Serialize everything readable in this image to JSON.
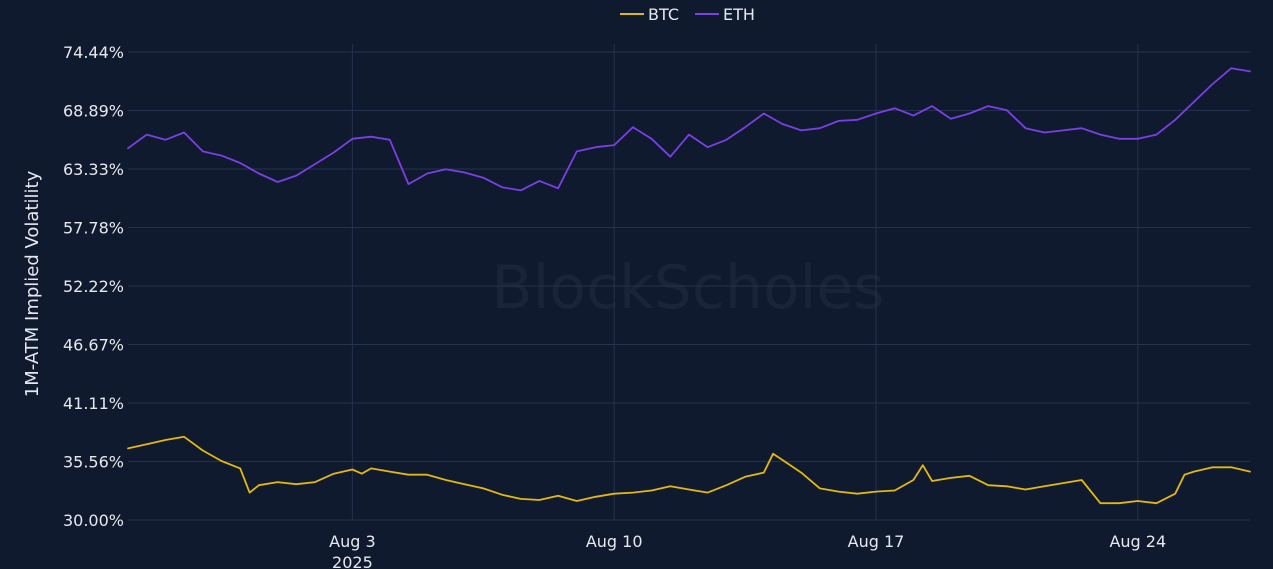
{
  "chart_data": {
    "type": "line",
    "title": "",
    "ylabel": "1M-ATM Implied Volatility",
    "xlabel": "",
    "ylim": [
      30.0,
      74.44
    ],
    "yticks": [
      "30.00%",
      "35.56%",
      "41.11%",
      "46.67%",
      "52.22%",
      "57.78%",
      "63.33%",
      "68.89%",
      "74.44%"
    ],
    "ytick_values": [
      30.0,
      35.56,
      41.11,
      46.67,
      52.22,
      57.78,
      63.33,
      68.89,
      74.44
    ],
    "xlim": [
      "2025-07-28",
      "2025-08-27"
    ],
    "xticks": [
      {
        "date": "2025-08-03",
        "label": "Aug 3",
        "sublabel": "2025"
      },
      {
        "date": "2025-08-10",
        "label": "Aug 10",
        "sublabel": ""
      },
      {
        "date": "2025-08-17",
        "label": "Aug 17",
        "sublabel": ""
      },
      {
        "date": "2025-08-24",
        "label": "Aug 24",
        "sublabel": ""
      }
    ],
    "grid": true,
    "legend_position": "top-center",
    "watermark": "BlockScholes",
    "colors": {
      "BTC": "#e3b80f",
      "ETH": "#7b3fe4",
      "background": "#0f1a2e",
      "grid": "#25324d"
    },
    "series": [
      {
        "name": "BTC",
        "points": [
          [
            "2025-07-28T00",
            36.8
          ],
          [
            "2025-07-28T12",
            37.2
          ],
          [
            "2025-07-29T00",
            37.6
          ],
          [
            "2025-07-29T12",
            37.9
          ],
          [
            "2025-07-30T00",
            36.6
          ],
          [
            "2025-07-30T12",
            35.6
          ],
          [
            "2025-07-31T00",
            34.9
          ],
          [
            "2025-07-31T06",
            32.6
          ],
          [
            "2025-07-31T12",
            33.3
          ],
          [
            "2025-08-01T00",
            33.6
          ],
          [
            "2025-08-01T12",
            33.4
          ],
          [
            "2025-08-02T00",
            33.6
          ],
          [
            "2025-08-02T12",
            34.4
          ],
          [
            "2025-08-03T00",
            34.8
          ],
          [
            "2025-08-03T06",
            34.4
          ],
          [
            "2025-08-03T12",
            34.9
          ],
          [
            "2025-08-04T00",
            34.6
          ],
          [
            "2025-08-04T12",
            34.3
          ],
          [
            "2025-08-05T00",
            34.3
          ],
          [
            "2025-08-05T12",
            33.8
          ],
          [
            "2025-08-06T00",
            33.4
          ],
          [
            "2025-08-06T12",
            33.0
          ],
          [
            "2025-08-07T00",
            32.4
          ],
          [
            "2025-08-07T12",
            32.0
          ],
          [
            "2025-08-08T00",
            31.9
          ],
          [
            "2025-08-08T12",
            32.3
          ],
          [
            "2025-08-09T00",
            31.8
          ],
          [
            "2025-08-09T12",
            32.2
          ],
          [
            "2025-08-10T00",
            32.5
          ],
          [
            "2025-08-10T12",
            32.6
          ],
          [
            "2025-08-11T00",
            32.8
          ],
          [
            "2025-08-11T12",
            33.2
          ],
          [
            "2025-08-12T00",
            32.9
          ],
          [
            "2025-08-12T12",
            32.6
          ],
          [
            "2025-08-13T00",
            33.3
          ],
          [
            "2025-08-13T12",
            34.1
          ],
          [
            "2025-08-14T00",
            34.5
          ],
          [
            "2025-08-14T06",
            36.3
          ],
          [
            "2025-08-14T12",
            35.7
          ],
          [
            "2025-08-15T00",
            34.5
          ],
          [
            "2025-08-15T12",
            33.0
          ],
          [
            "2025-08-16T00",
            32.7
          ],
          [
            "2025-08-16T12",
            32.5
          ],
          [
            "2025-08-17T00",
            32.7
          ],
          [
            "2025-08-17T12",
            32.8
          ],
          [
            "2025-08-18T00",
            33.8
          ],
          [
            "2025-08-18T06",
            35.2
          ],
          [
            "2025-08-18T12",
            33.7
          ],
          [
            "2025-08-19T00",
            34.0
          ],
          [
            "2025-08-19T12",
            34.2
          ],
          [
            "2025-08-20T00",
            33.3
          ],
          [
            "2025-08-20T12",
            33.2
          ],
          [
            "2025-08-21T00",
            32.9
          ],
          [
            "2025-08-21T12",
            33.2
          ],
          [
            "2025-08-22T00",
            33.5
          ],
          [
            "2025-08-22T12",
            33.8
          ],
          [
            "2025-08-23T00",
            31.6
          ],
          [
            "2025-08-23T12",
            31.6
          ],
          [
            "2025-08-24T00",
            31.8
          ],
          [
            "2025-08-24T12",
            31.6
          ],
          [
            "2025-08-25T00",
            32.5
          ],
          [
            "2025-08-25T06",
            34.3
          ],
          [
            "2025-08-25T12",
            34.6
          ],
          [
            "2025-08-26T00",
            35.0
          ],
          [
            "2025-08-26T12",
            35.0
          ],
          [
            "2025-08-27T00",
            34.6
          ]
        ]
      },
      {
        "name": "ETH",
        "points": [
          [
            "2025-07-28T00",
            65.3
          ],
          [
            "2025-07-28T12",
            66.6
          ],
          [
            "2025-07-29T00",
            66.1
          ],
          [
            "2025-07-29T12",
            66.8
          ],
          [
            "2025-07-30T00",
            65.0
          ],
          [
            "2025-07-30T12",
            64.6
          ],
          [
            "2025-07-31T00",
            63.9
          ],
          [
            "2025-07-31T12",
            62.9
          ],
          [
            "2025-08-01T00",
            62.1
          ],
          [
            "2025-08-01T12",
            62.7
          ],
          [
            "2025-08-02T00",
            63.8
          ],
          [
            "2025-08-02T12",
            64.9
          ],
          [
            "2025-08-03T00",
            66.2
          ],
          [
            "2025-08-03T12",
            66.4
          ],
          [
            "2025-08-04T00",
            66.1
          ],
          [
            "2025-08-04T06",
            64.0
          ],
          [
            "2025-08-04T12",
            61.9
          ],
          [
            "2025-08-05T00",
            62.9
          ],
          [
            "2025-08-05T12",
            63.3
          ],
          [
            "2025-08-06T00",
            63.0
          ],
          [
            "2025-08-06T12",
            62.5
          ],
          [
            "2025-08-07T00",
            61.6
          ],
          [
            "2025-08-07T12",
            61.3
          ],
          [
            "2025-08-08T00",
            62.2
          ],
          [
            "2025-08-08T12",
            61.5
          ],
          [
            "2025-08-09T00",
            65.0
          ],
          [
            "2025-08-09T12",
            65.4
          ],
          [
            "2025-08-10T00",
            65.6
          ],
          [
            "2025-08-10T12",
            67.3
          ],
          [
            "2025-08-11T00",
            66.2
          ],
          [
            "2025-08-11T12",
            64.5
          ],
          [
            "2025-08-12T00",
            66.6
          ],
          [
            "2025-08-12T12",
            65.4
          ],
          [
            "2025-08-13T00",
            66.1
          ],
          [
            "2025-08-13T12",
            67.3
          ],
          [
            "2025-08-14T00",
            68.6
          ],
          [
            "2025-08-14T12",
            67.6
          ],
          [
            "2025-08-15T00",
            67.0
          ],
          [
            "2025-08-15T12",
            67.2
          ],
          [
            "2025-08-16T00",
            67.9
          ],
          [
            "2025-08-16T12",
            68.0
          ],
          [
            "2025-08-17T00",
            68.6
          ],
          [
            "2025-08-17T12",
            69.1
          ],
          [
            "2025-08-18T00",
            68.4
          ],
          [
            "2025-08-18T12",
            69.3
          ],
          [
            "2025-08-19T00",
            68.1
          ],
          [
            "2025-08-19T12",
            68.6
          ],
          [
            "2025-08-20T00",
            69.3
          ],
          [
            "2025-08-20T12",
            68.9
          ],
          [
            "2025-08-21T00",
            67.2
          ],
          [
            "2025-08-21T12",
            66.8
          ],
          [
            "2025-08-22T00",
            67.0
          ],
          [
            "2025-08-22T12",
            67.2
          ],
          [
            "2025-08-23T00",
            66.6
          ],
          [
            "2025-08-23T12",
            66.2
          ],
          [
            "2025-08-24T00",
            66.2
          ],
          [
            "2025-08-24T12",
            66.6
          ],
          [
            "2025-08-25T00",
            68.0
          ],
          [
            "2025-08-25T12",
            69.7
          ],
          [
            "2025-08-26T00",
            71.4
          ],
          [
            "2025-08-26T12",
            72.9
          ],
          [
            "2025-08-27T00",
            72.6
          ]
        ]
      }
    ]
  }
}
